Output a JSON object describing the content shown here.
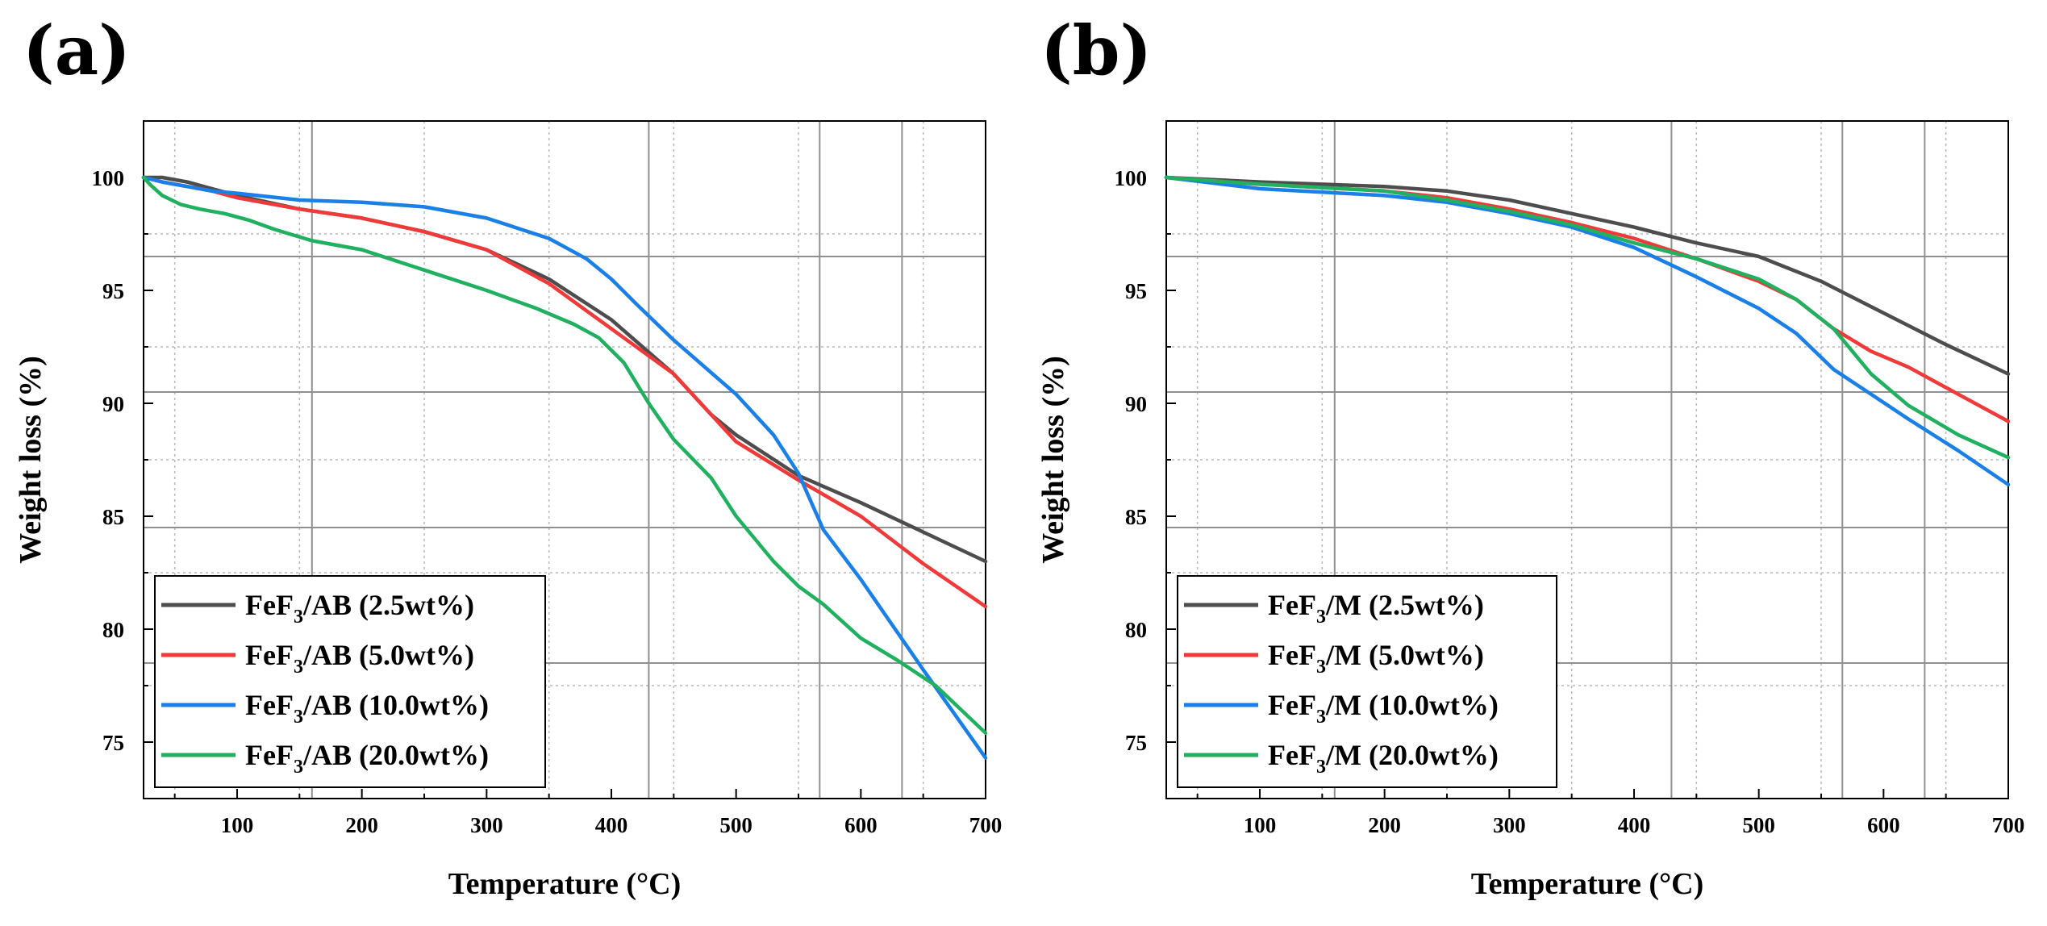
{
  "chart_data": [
    {
      "panel_label": "(a)",
      "type": "line",
      "xlabel": "Temperature (",
      "xlabel_unit": "°C",
      "xlabel_close": ")",
      "ylabel": "Weight loss (%)",
      "xlim": [
        25,
        700
      ],
      "ylim": [
        72.5,
        102.5
      ],
      "xticks": [
        100,
        200,
        300,
        400,
        500,
        600,
        700
      ],
      "yticks": [
        75,
        80,
        85,
        90,
        95,
        100
      ],
      "legend_position": "bottom-left",
      "series": [
        {
          "name_main": "FeF",
          "name_sub": "3",
          "name_rest": "/AB (2.5wt%)",
          "color": "#4d4d4d",
          "x": [
            25,
            40,
            60,
            80,
            100,
            150,
            200,
            250,
            300,
            350,
            400,
            450,
            480,
            500,
            550,
            600,
            650,
            700
          ],
          "y": [
            100,
            100,
            99.8,
            99.5,
            99.2,
            98.6,
            98.2,
            97.6,
            96.8,
            95.5,
            93.7,
            91.3,
            89.5,
            88.6,
            86.8,
            85.6,
            84.3,
            83.0
          ]
        },
        {
          "name_main": "FeF",
          "name_sub": "3",
          "name_rest": "/AB (5.0wt%)",
          "color": "#f03a3a",
          "x": [
            25,
            40,
            60,
            80,
            100,
            150,
            200,
            250,
            300,
            350,
            400,
            450,
            500,
            550,
            600,
            650,
            700
          ],
          "y": [
            100,
            99.8,
            99.6,
            99.4,
            99.1,
            98.6,
            98.2,
            97.6,
            96.8,
            95.3,
            93.3,
            91.3,
            88.3,
            86.6,
            85.0,
            82.9,
            81.0
          ]
        },
        {
          "name_main": "FeF",
          "name_sub": "3",
          "name_rest": "/AB (10.0wt%)",
          "color": "#1a7fe6",
          "x": [
            25,
            40,
            60,
            80,
            100,
            150,
            200,
            250,
            300,
            350,
            380,
            400,
            420,
            450,
            500,
            530,
            550,
            570,
            600,
            650,
            700
          ],
          "y": [
            100,
            99.8,
            99.6,
            99.4,
            99.3,
            99.0,
            98.9,
            98.7,
            98.2,
            97.3,
            96.4,
            95.5,
            94.4,
            92.8,
            90.4,
            88.6,
            86.9,
            84.4,
            82.2,
            78.2,
            74.3
          ]
        },
        {
          "name_main": "FeF",
          "name_sub": "3",
          "name_rest": "/AB (20.0wt%)",
          "color": "#20b060",
          "x": [
            25,
            30,
            40,
            55,
            70,
            90,
            110,
            130,
            160,
            200,
            250,
            300,
            340,
            370,
            390,
            410,
            430,
            450,
            480,
            500,
            530,
            550,
            570,
            600,
            630,
            660,
            700
          ],
          "y": [
            100,
            99.7,
            99.2,
            98.8,
            98.6,
            98.4,
            98.1,
            97.7,
            97.2,
            96.8,
            95.9,
            95.0,
            94.2,
            93.5,
            92.9,
            91.8,
            90.0,
            88.4,
            86.7,
            85.0,
            83.0,
            81.9,
            81.1,
            79.6,
            78.6,
            77.5,
            75.4
          ]
        }
      ]
    },
    {
      "panel_label": "(b)",
      "type": "line",
      "xlabel": "Temperature (",
      "xlabel_unit": "°C",
      "xlabel_close": ")",
      "ylabel": "Weight loss (%)",
      "xlim": [
        25,
        700
      ],
      "ylim": [
        72.5,
        102.5
      ],
      "xticks": [
        100,
        200,
        300,
        400,
        500,
        600,
        700
      ],
      "yticks": [
        75,
        80,
        85,
        90,
        95,
        100
      ],
      "legend_position": "bottom-left",
      "series": [
        {
          "name_main": "FeF",
          "name_sub": "3",
          "name_rest": "/M (2.5wt%)",
          "color": "#4d4d4d",
          "x": [
            25,
            100,
            200,
            250,
            300,
            350,
            400,
            450,
            500,
            550,
            600,
            650,
            700
          ],
          "y": [
            100,
            99.8,
            99.6,
            99.4,
            99.0,
            98.4,
            97.8,
            97.1,
            96.5,
            95.4,
            94.0,
            92.6,
            91.3
          ]
        },
        {
          "name_main": "FeF",
          "name_sub": "3",
          "name_rest": "/M (5.0wt%)",
          "color": "#f03a3a",
          "x": [
            25,
            100,
            200,
            250,
            300,
            350,
            400,
            450,
            500,
            530,
            560,
            590,
            620,
            660,
            700
          ],
          "y": [
            100,
            99.7,
            99.4,
            99.1,
            98.6,
            98.0,
            97.3,
            96.4,
            95.4,
            94.6,
            93.3,
            92.3,
            91.6,
            90.4,
            89.2
          ]
        },
        {
          "name_main": "FeF",
          "name_sub": "3",
          "name_rest": "/M (10.0wt%)",
          "color": "#1a7fe6",
          "x": [
            25,
            100,
            200,
            250,
            300,
            350,
            400,
            450,
            500,
            530,
            560,
            590,
            620,
            660,
            700
          ],
          "y": [
            100,
            99.5,
            99.2,
            98.9,
            98.4,
            97.8,
            96.9,
            95.6,
            94.2,
            93.1,
            91.5,
            90.4,
            89.3,
            87.9,
            86.4
          ]
        },
        {
          "name_main": "FeF",
          "name_sub": "3",
          "name_rest": "/M (20.0wt%)",
          "color": "#20b060",
          "x": [
            25,
            100,
            200,
            250,
            300,
            350,
            400,
            450,
            500,
            530,
            560,
            590,
            620,
            660,
            700
          ],
          "y": [
            100,
            99.7,
            99.4,
            99.0,
            98.5,
            97.9,
            97.1,
            96.4,
            95.5,
            94.6,
            93.3,
            91.3,
            89.9,
            88.6,
            87.6
          ]
        }
      ]
    }
  ]
}
